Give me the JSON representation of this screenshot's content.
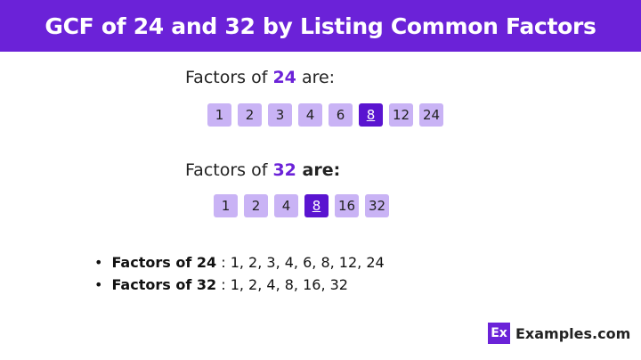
{
  "title": "GCF of 24 and 32 by Listing Common Factors",
  "section1": {
    "prefix": "Factors of ",
    "number": "24",
    "suffix": " are:",
    "factors": [
      "1",
      "2",
      "3",
      "4",
      "6",
      "8",
      "12",
      "24"
    ],
    "highlight": "8"
  },
  "section2": {
    "prefix": "Factors of ",
    "number": "32",
    "suffix": " are:",
    "factors": [
      "1",
      "2",
      "4",
      "8",
      "16",
      "32"
    ],
    "highlight": "8"
  },
  "summary": [
    {
      "label": "Factors of 24",
      "values": " : 1, 2, 3, 4, 6, 8, 12, 24"
    },
    {
      "label": "Factors of 32",
      "values": " : 1, 2, 4, 8, 16, 32"
    }
  ],
  "logo": {
    "mark": "Ex",
    "text": "Examples.com"
  },
  "colors": {
    "accent": "#6b22d8",
    "box": "#c9b3f5",
    "highlight": "#5a14d0"
  }
}
